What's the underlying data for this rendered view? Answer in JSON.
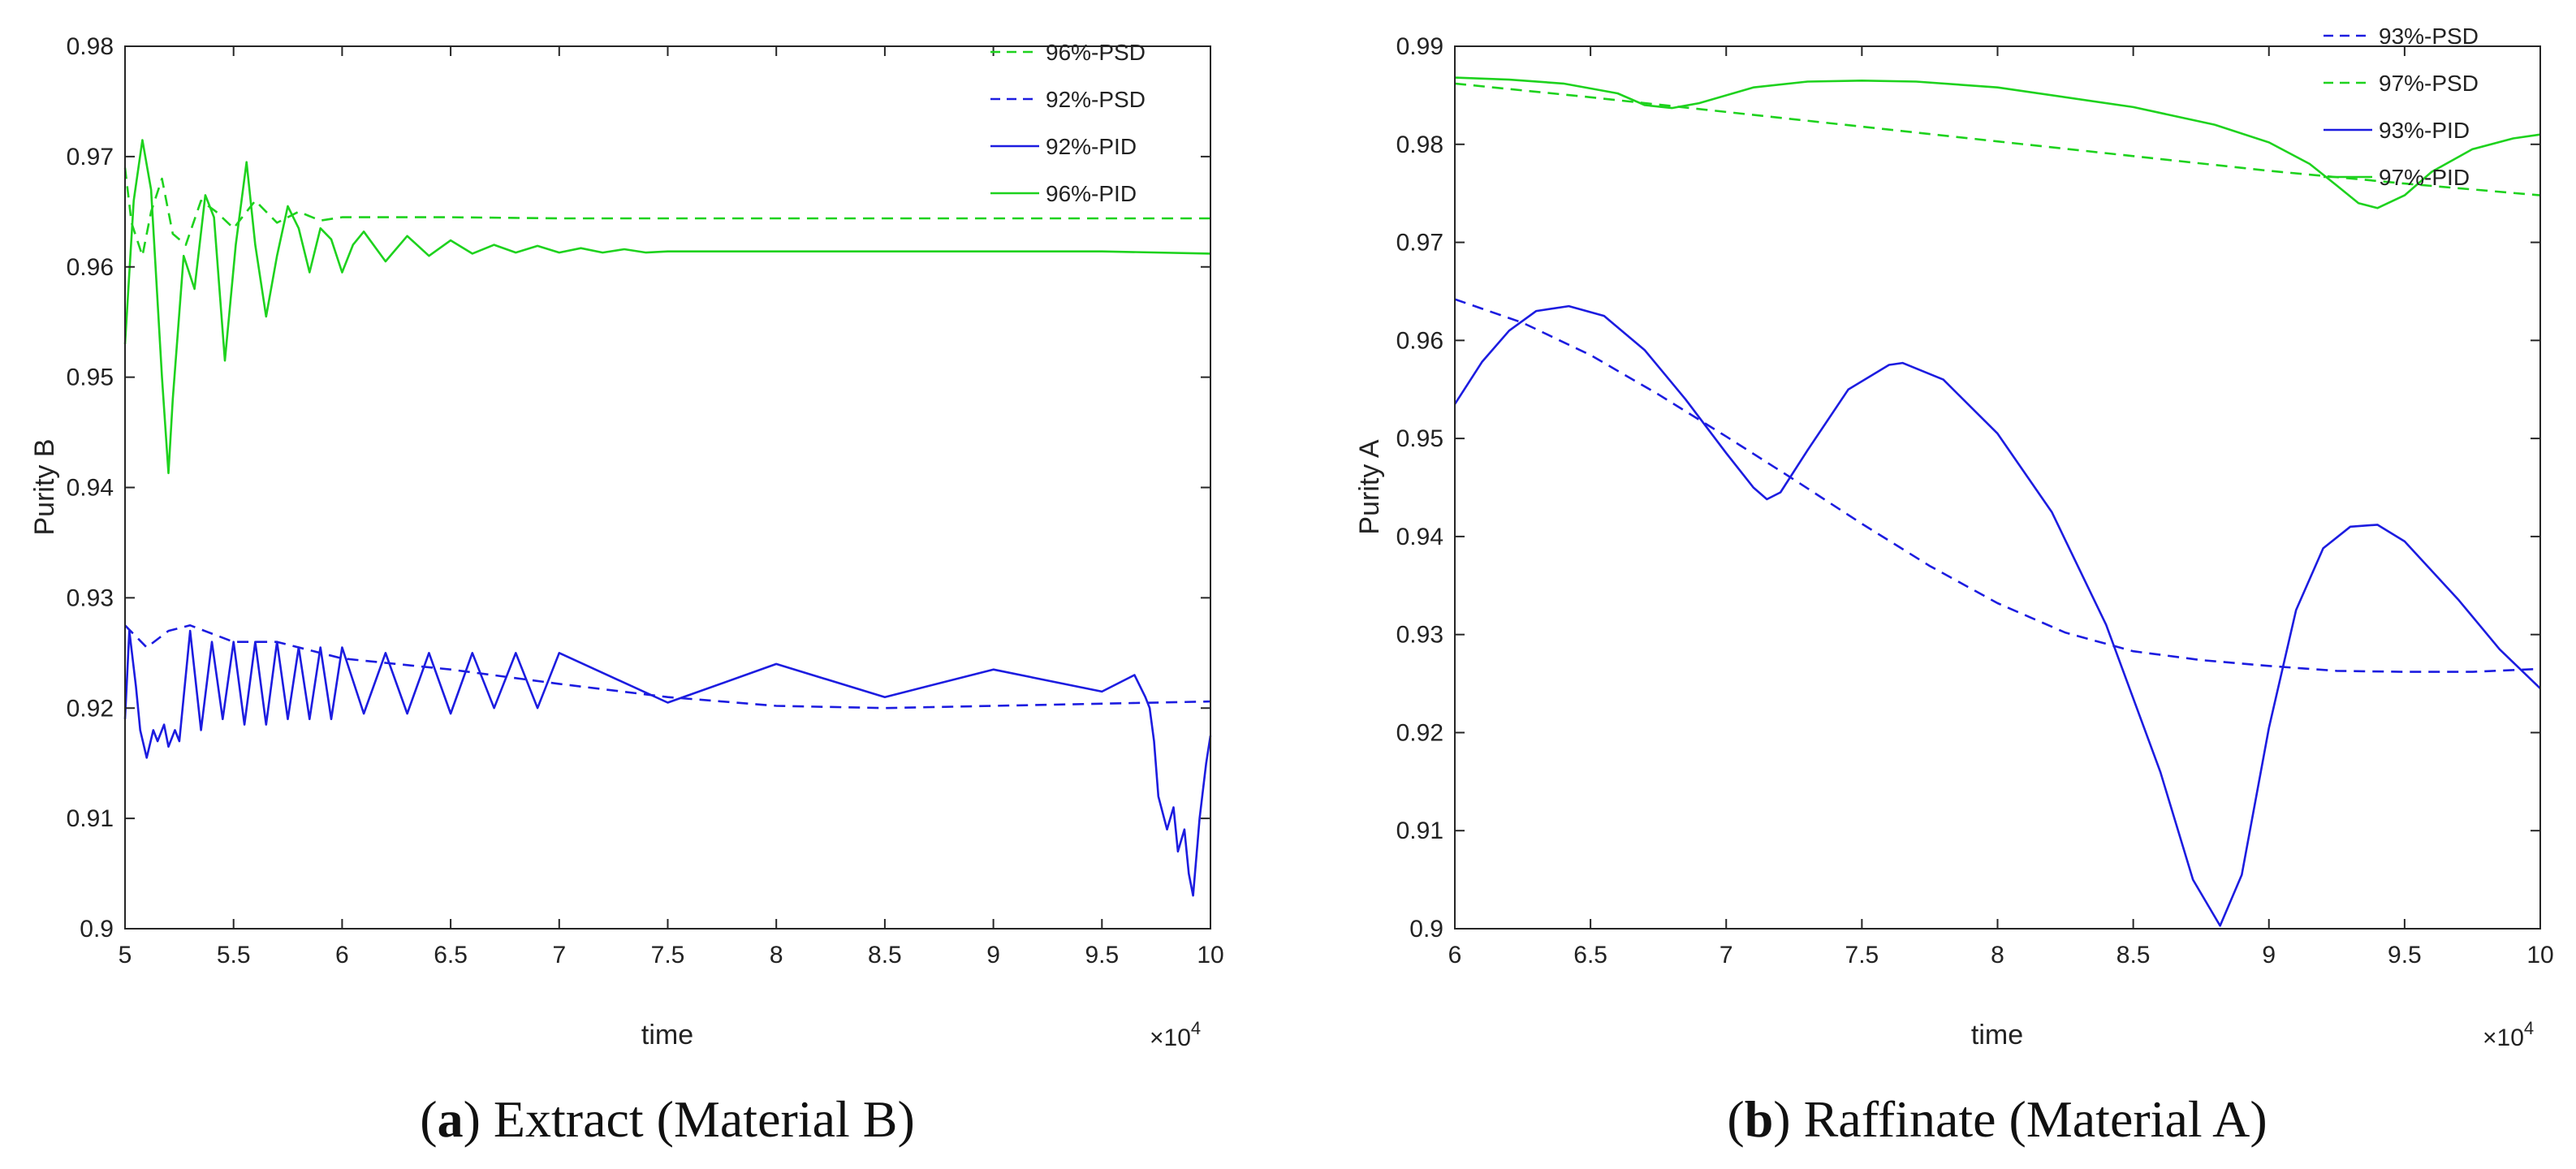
{
  "figure": {
    "panels": [
      {
        "caption_letter": "a",
        "caption_paren_open": "(",
        "caption_paren_close": ")",
        "caption_text": "Extract (Material B)"
      },
      {
        "caption_letter": "b",
        "caption_paren_open": "(",
        "caption_paren_close": ")",
        "caption_text": "Raffinate (Material A)"
      }
    ]
  },
  "chart_data": [
    {
      "type": "line",
      "title": "",
      "xlabel": "time",
      "ylabel": "Purity B",
      "x_multiplier_label": "×10",
      "x_multiplier_exponent": "4",
      "xlim": [
        5,
        10
      ],
      "ylim": [
        0.9,
        0.98
      ],
      "x_ticks": [
        "5",
        "5.5",
        "6",
        "6.5",
        "7",
        "7.5",
        "8",
        "8.5",
        "9",
        "9.5",
        "10"
      ],
      "y_ticks": [
        "0.9",
        "0.91",
        "0.92",
        "0.93",
        "0.94",
        "0.95",
        "0.96",
        "0.97",
        "0.98"
      ],
      "legend_position": "top-right",
      "series": [
        {
          "name": "96%-PSD",
          "color": "#1ed21e",
          "style": "dashed",
          "x": [
            5.0,
            5.03,
            5.08,
            5.12,
            5.17,
            5.22,
            5.28,
            5.35,
            5.42,
            5.5,
            5.6,
            5.7,
            5.8,
            5.9,
            6.0,
            6.5,
            7.0,
            8.0,
            9.0,
            10.0
          ],
          "y": [
            0.969,
            0.964,
            0.961,
            0.965,
            0.968,
            0.963,
            0.962,
            0.966,
            0.965,
            0.9635,
            0.966,
            0.964,
            0.965,
            0.9642,
            0.9645,
            0.9645,
            0.9644,
            0.9644,
            0.9644,
            0.9644
          ]
        },
        {
          "name": "92%-PSD",
          "color": "#1c1ce0",
          "style": "dashed",
          "x": [
            5.0,
            5.1,
            5.2,
            5.3,
            5.5,
            5.7,
            6.0,
            6.5,
            7.0,
            7.5,
            8.0,
            8.5,
            9.0,
            9.5,
            10.0
          ],
          "y": [
            0.9275,
            0.9255,
            0.927,
            0.9275,
            0.926,
            0.926,
            0.9245,
            0.9235,
            0.9222,
            0.921,
            0.9202,
            0.92,
            0.9202,
            0.9204,
            0.9206
          ]
        },
        {
          "name": "92%-PID",
          "color": "#1c1ce0",
          "style": "solid",
          "x": [
            5.0,
            5.02,
            5.05,
            5.07,
            5.1,
            5.13,
            5.15,
            5.18,
            5.2,
            5.23,
            5.25,
            5.3,
            5.35,
            5.4,
            5.45,
            5.5,
            5.55,
            5.6,
            5.65,
            5.7,
            5.75,
            5.8,
            5.85,
            5.9,
            5.95,
            6.0,
            6.1,
            6.2,
            6.3,
            6.4,
            6.5,
            6.6,
            6.7,
            6.8,
            6.9,
            7.0,
            7.5,
            8.0,
            8.5,
            9.0,
            9.5,
            9.65,
            9.7,
            9.72,
            9.74,
            9.76,
            9.8,
            9.83,
            9.85,
            9.88,
            9.9,
            9.92,
            9.95,
            9.98,
            10.0
          ],
          "y": [
            0.919,
            0.927,
            0.922,
            0.918,
            0.9155,
            0.918,
            0.917,
            0.9185,
            0.9165,
            0.918,
            0.917,
            0.927,
            0.918,
            0.926,
            0.919,
            0.926,
            0.9185,
            0.926,
            0.9185,
            0.926,
            0.919,
            0.9255,
            0.919,
            0.9255,
            0.919,
            0.9255,
            0.9195,
            0.925,
            0.9195,
            0.925,
            0.9195,
            0.925,
            0.92,
            0.925,
            0.92,
            0.925,
            0.9205,
            0.924,
            0.921,
            0.9235,
            0.9215,
            0.923,
            0.921,
            0.92,
            0.917,
            0.912,
            0.909,
            0.911,
            0.907,
            0.909,
            0.905,
            0.903,
            0.91,
            0.915,
            0.9175
          ]
        },
        {
          "name": "96%-PID",
          "color": "#1ed21e",
          "style": "solid",
          "x": [
            5.0,
            5.04,
            5.08,
            5.12,
            5.17,
            5.2,
            5.22,
            5.27,
            5.32,
            5.37,
            5.41,
            5.46,
            5.51,
            5.56,
            5.6,
            5.65,
            5.7,
            5.75,
            5.8,
            5.85,
            5.9,
            5.95,
            6.0,
            6.05,
            6.1,
            6.2,
            6.3,
            6.4,
            6.5,
            6.6,
            6.7,
            6.8,
            6.9,
            7.0,
            7.1,
            7.2,
            7.3,
            7.4,
            7.5,
            8.0,
            8.5,
            9.0,
            9.5,
            10.0
          ],
          "y": [
            0.953,
            0.966,
            0.9715,
            0.967,
            0.95,
            0.9413,
            0.948,
            0.961,
            0.958,
            0.9665,
            0.9645,
            0.9515,
            0.962,
            0.9695,
            0.962,
            0.9555,
            0.961,
            0.9655,
            0.9635,
            0.9595,
            0.9635,
            0.9625,
            0.9595,
            0.962,
            0.9632,
            0.9605,
            0.9628,
            0.961,
            0.9624,
            0.9612,
            0.962,
            0.9613,
            0.9619,
            0.9613,
            0.9617,
            0.9613,
            0.9616,
            0.9613,
            0.9614,
            0.9614,
            0.9614,
            0.9614,
            0.9614,
            0.9612
          ]
        }
      ]
    },
    {
      "type": "line",
      "title": "",
      "xlabel": "time",
      "ylabel": "Purity A",
      "x_multiplier_label": "×10",
      "x_multiplier_exponent": "4",
      "xlim": [
        6,
        10
      ],
      "ylim": [
        0.9,
        0.99
      ],
      "x_ticks": [
        "6",
        "6.5",
        "7",
        "7.5",
        "8",
        "8.5",
        "9",
        "9.5",
        "10"
      ],
      "y_ticks": [
        "0.9",
        "0.91",
        "0.92",
        "0.93",
        "0.94",
        "0.95",
        "0.96",
        "0.97",
        "0.98",
        "0.99"
      ],
      "legend_position": "top-right",
      "series": [
        {
          "name": "93%-PSD",
          "color": "#1c1ce0",
          "style": "dashed",
          "x": [
            6.0,
            6.25,
            6.5,
            6.75,
            7.0,
            7.25,
            7.5,
            7.75,
            8.0,
            8.25,
            8.5,
            8.75,
            9.0,
            9.25,
            9.5,
            9.75,
            10.0
          ],
          "y": [
            0.9642,
            0.9618,
            0.9585,
            0.9545,
            0.9502,
            0.9458,
            0.9413,
            0.937,
            0.9332,
            0.9302,
            0.9283,
            0.9274,
            0.9268,
            0.9263,
            0.9262,
            0.9262,
            0.9265
          ]
        },
        {
          "name": "97%-PSD",
          "color": "#1ed21e",
          "style": "dashed",
          "x": [
            6.0,
            6.5,
            7.0,
            7.5,
            8.0,
            8.5,
            9.0,
            9.5,
            10.0
          ],
          "y": [
            0.9862,
            0.9848,
            0.9833,
            0.9818,
            0.9803,
            0.9788,
            0.9773,
            0.976,
            0.9748
          ]
        },
        {
          "name": "93%-PID",
          "color": "#1c1ce0",
          "style": "solid",
          "x": [
            6.0,
            6.1,
            6.2,
            6.3,
            6.42,
            6.55,
            6.7,
            6.85,
            7.0,
            7.1,
            7.15,
            7.2,
            7.3,
            7.45,
            7.6,
            7.65,
            7.8,
            8.0,
            8.2,
            8.4,
            8.6,
            8.72,
            8.82,
            8.9,
            9.0,
            9.1,
            9.2,
            9.3,
            9.4,
            9.5,
            9.7,
            9.85,
            10.0
          ],
          "y": [
            0.9535,
            0.9578,
            0.961,
            0.963,
            0.9635,
            0.9625,
            0.959,
            0.954,
            0.9485,
            0.945,
            0.9438,
            0.9445,
            0.9488,
            0.955,
            0.9575,
            0.9577,
            0.956,
            0.9505,
            0.9425,
            0.931,
            0.916,
            0.905,
            0.9003,
            0.9055,
            0.9205,
            0.9325,
            0.9388,
            0.941,
            0.9412,
            0.9395,
            0.9335,
            0.9285,
            0.9245
          ]
        },
        {
          "name": "97%-PID",
          "color": "#1ed21e",
          "style": "solid",
          "x": [
            6.0,
            6.2,
            6.4,
            6.6,
            6.7,
            6.8,
            6.9,
            7.1,
            7.3,
            7.5,
            7.7,
            8.0,
            8.5,
            8.8,
            9.0,
            9.15,
            9.25,
            9.33,
            9.4,
            9.5,
            9.6,
            9.75,
            9.9,
            10.0
          ],
          "y": [
            0.9868,
            0.9866,
            0.9862,
            0.9852,
            0.984,
            0.9837,
            0.9842,
            0.9858,
            0.9864,
            0.9865,
            0.9864,
            0.9858,
            0.9838,
            0.982,
            0.9802,
            0.978,
            0.9758,
            0.974,
            0.9735,
            0.9748,
            0.9772,
            0.9795,
            0.9806,
            0.981
          ]
        }
      ]
    }
  ]
}
